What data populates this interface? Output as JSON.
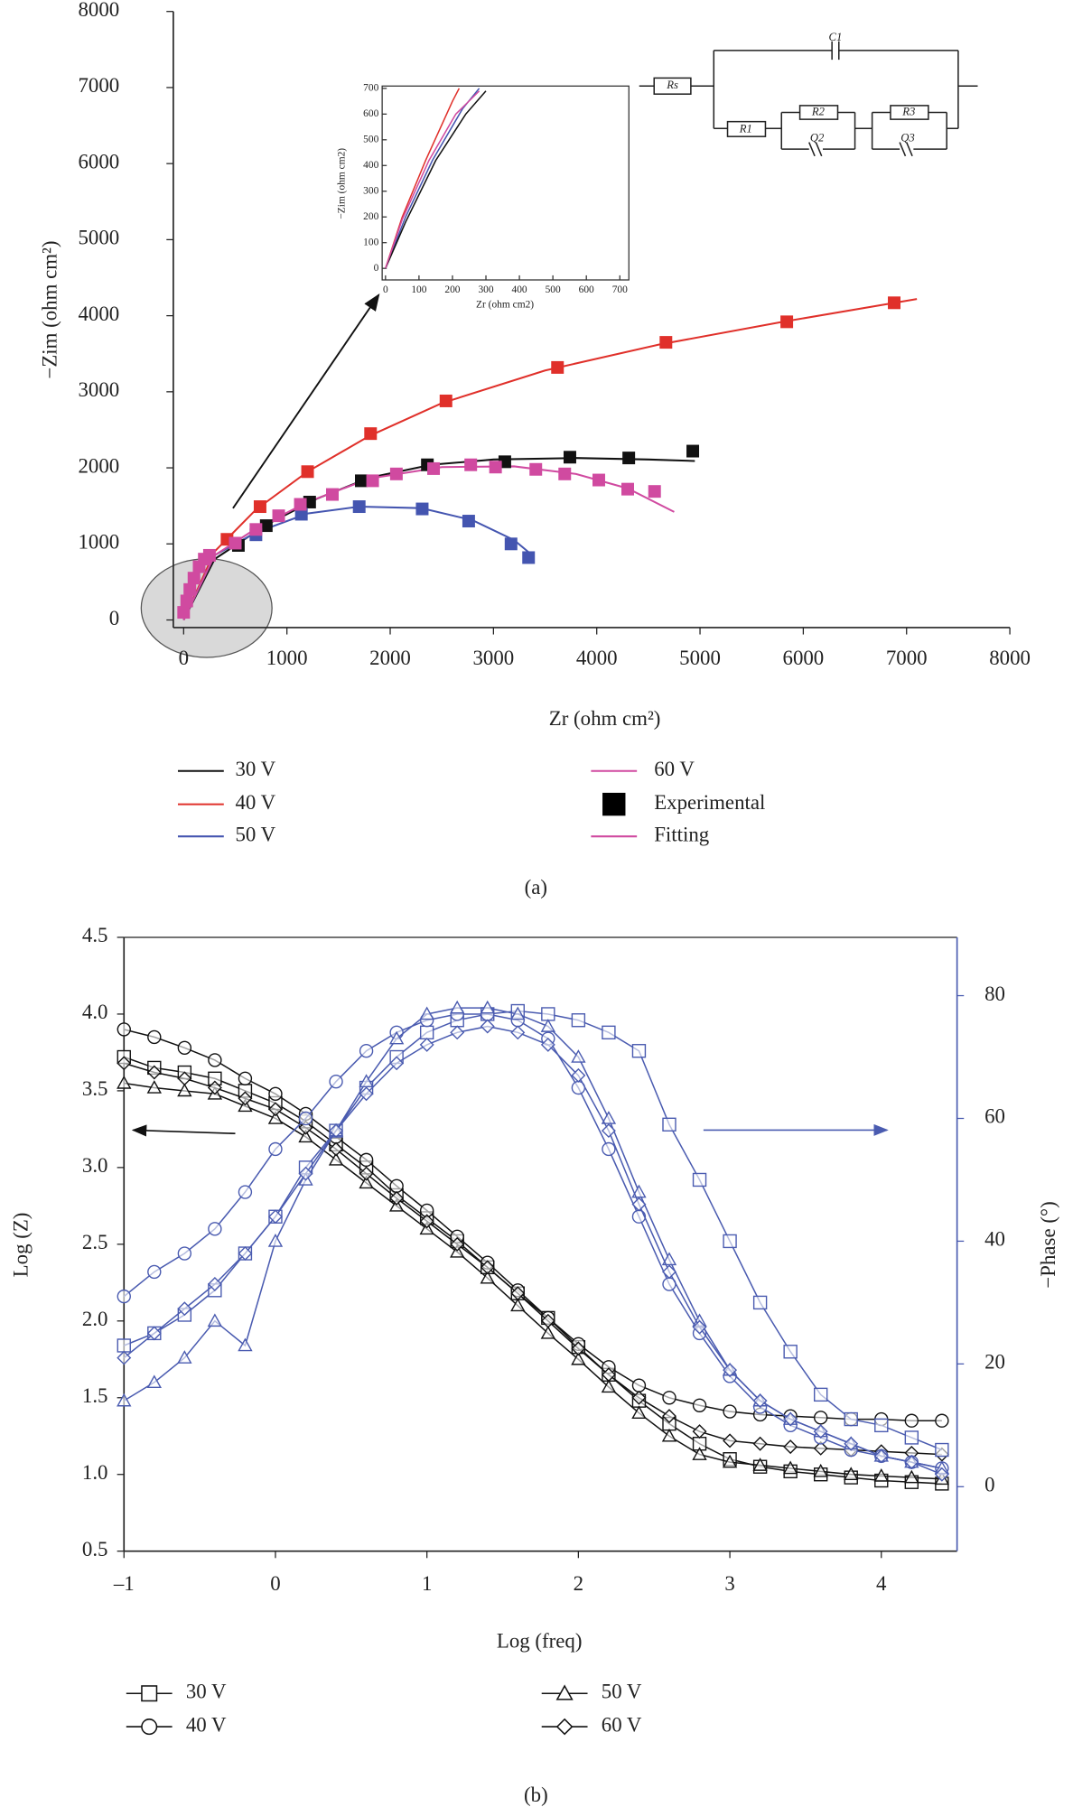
{
  "chart_data": [
    {
      "type": "scatter",
      "caption": "(a)",
      "x_label": "Zr (ohm cm²)",
      "y_label": "−Zim (ohm cm²)",
      "xlim": [
        -100,
        8000
      ],
      "ylim": [
        -100,
        8000
      ],
      "xticks": [
        0,
        1000,
        2000,
        3000,
        4000,
        5000,
        6000,
        7000,
        8000
      ],
      "yticks": [
        0,
        1000,
        2000,
        3000,
        4000,
        5000,
        6000,
        7000,
        8000
      ],
      "experimental_label": "Experimental",
      "fitting_label": "Fitting",
      "circuit_labels": [
        "Rs",
        "C1",
        "R1",
        "R2",
        "Q2",
        "R3",
        "Q3"
      ],
      "series": [
        {
          "name": "30 V",
          "color": "#111111",
          "x": [
            530,
            800,
            1220,
            1720,
            2360,
            3110,
            3740,
            4310,
            4930
          ],
          "values": [
            980,
            1240,
            1550,
            1830,
            2040,
            2080,
            2140,
            2130,
            2220
          ],
          "fit_x": [
            0,
            300,
            800,
            1300,
            1800,
            2400,
            3000,
            3800,
            4500,
            4950
          ],
          "fit_values": [
            0,
            800,
            1250,
            1600,
            1870,
            2040,
            2110,
            2130,
            2110,
            2090
          ]
        },
        {
          "name": "40 V",
          "color": "#e0302a",
          "x": [
            420,
            740,
            1200,
            1810,
            2540,
            3620,
            4670,
            5840,
            6880
          ],
          "values": [
            1060,
            1490,
            1950,
            2450,
            2880,
            3320,
            3650,
            3920,
            4170
          ],
          "fit_x": [
            0,
            300,
            700,
            1200,
            1800,
            2500,
            3500,
            4600,
            5800,
            7100
          ],
          "fit_values": [
            0,
            900,
            1450,
            1950,
            2420,
            2850,
            3280,
            3620,
            3920,
            4220
          ]
        },
        {
          "name": "50 V",
          "color": "#4455b0",
          "x": [
            700,
            1140,
            1700,
            2310,
            2760,
            3170,
            3340
          ],
          "values": [
            1120,
            1390,
            1490,
            1460,
            1300,
            1000,
            820
          ],
          "fit_x": [
            0,
            300,
            700,
            1200,
            1700,
            2300,
            2800,
            3200,
            3350
          ],
          "fit_values": [
            0,
            850,
            1150,
            1400,
            1490,
            1470,
            1310,
            1050,
            880
          ]
        },
        {
          "name": "60 V",
          "color": "#d04aa0",
          "x": [
            0,
            30,
            60,
            100,
            150,
            200,
            250,
            500,
            700,
            920,
            1130,
            1440,
            1830,
            2060,
            2420,
            2780,
            3020,
            3410,
            3690,
            4020,
            4300,
            4560
          ],
          "values": [
            100,
            250,
            400,
            550,
            700,
            800,
            850,
            1010,
            1190,
            1370,
            1520,
            1650,
            1830,
            1920,
            1990,
            2040,
            2010,
            1980,
            1920,
            1840,
            1720,
            1690
          ],
          "fit_x": [
            0,
            300,
            700,
            1200,
            1800,
            2500,
            3200,
            3800,
            4300,
            4750
          ],
          "fit_values": [
            0,
            850,
            1200,
            1550,
            1860,
            2010,
            2020,
            1920,
            1730,
            1420
          ]
        }
      ]
    },
    {
      "type": "line",
      "x_label": "Zr (ohm cm2)",
      "y_label": "−Zim (ohm cm2)",
      "xlim": [
        -10,
        727
      ],
      "ylim": [
        -45,
        709
      ],
      "xticks": [
        0,
        100,
        200,
        300,
        400,
        500,
        600,
        700
      ],
      "yticks": [
        0,
        100,
        200,
        300,
        400,
        500,
        600,
        700
      ],
      "series": [
        {
          "color": "#e0302a",
          "x": [
            0,
            50,
            120,
            200,
            220
          ],
          "values": [
            0,
            200,
            420,
            650,
            700
          ]
        },
        {
          "color": "#4455b0",
          "x": [
            0,
            60,
            140,
            230,
            280
          ],
          "values": [
            0,
            200,
            420,
            620,
            700
          ]
        },
        {
          "color": "#111111",
          "x": [
            0,
            60,
            150,
            240,
            300
          ],
          "values": [
            0,
            180,
            420,
            600,
            690
          ]
        },
        {
          "color": "#d04aa0",
          "x": [
            0,
            50,
            130,
            210,
            280
          ],
          "values": [
            0,
            190,
            420,
            600,
            690
          ]
        }
      ]
    },
    {
      "type": "line",
      "caption": "(b)",
      "x_label": "Log (freq)",
      "y_label": "Log (Z)",
      "y2_label": "−Phase (°)",
      "xlim": [
        -1,
        4.5
      ],
      "ylim": [
        0.5,
        4.5
      ],
      "y2lim": [
        -10.5,
        89.5
      ],
      "xticks": [
        {
          "value": -1,
          "label": "–1"
        },
        0,
        1,
        2,
        3,
        4
      ],
      "yticks": [
        0.5,
        {
          "value": 1,
          "label": "1.0"
        },
        1.5,
        {
          "value": 2,
          "label": "2.0"
        },
        2.5,
        {
          "value": 3,
          "label": "3.0"
        },
        3.5,
        {
          "value": 4,
          "label": "4.0"
        },
        4.5
      ],
      "y2ticks": [
        0,
        20,
        40,
        60,
        80
      ],
      "x": [
        -1,
        -0.8,
        -0.6,
        -0.4,
        -0.2,
        0,
        0.2,
        0.4,
        0.6,
        0.8,
        1,
        1.2,
        1.4,
        1.6,
        1.8,
        2,
        2.2,
        2.4,
        2.6,
        2.8,
        3,
        3.2,
        3.4,
        3.6,
        3.8,
        4,
        4.2,
        4.4
      ],
      "series": [
        {
          "name": "30 V",
          "marker": "square",
          "color": "#111111",
          "values": [
            3.72,
            3.65,
            3.62,
            3.58,
            3.5,
            3.42,
            3.3,
            3.15,
            3.0,
            2.82,
            2.67,
            2.52,
            2.35,
            2.18,
            2.02,
            1.83,
            1.65,
            1.48,
            1.33,
            1.2,
            1.1,
            1.05,
            1.02,
            1.0,
            0.98,
            0.96,
            0.95,
            0.94
          ]
        },
        {
          "name": "40 V",
          "marker": "circle",
          "color": "#111111",
          "values": [
            3.9,
            3.85,
            3.78,
            3.7,
            3.58,
            3.48,
            3.35,
            3.2,
            3.05,
            2.88,
            2.72,
            2.55,
            2.38,
            2.2,
            2.02,
            1.85,
            1.7,
            1.58,
            1.5,
            1.45,
            1.41,
            1.39,
            1.38,
            1.37,
            1.36,
            1.36,
            1.35,
            1.35
          ]
        },
        {
          "name": "50 V",
          "marker": "triangle",
          "color": "#111111",
          "values": [
            3.55,
            3.52,
            3.5,
            3.48,
            3.4,
            3.32,
            3.2,
            3.05,
            2.9,
            2.75,
            2.6,
            2.45,
            2.28,
            2.1,
            1.92,
            1.75,
            1.57,
            1.4,
            1.25,
            1.13,
            1.08,
            1.06,
            1.04,
            1.02,
            1.0,
            0.99,
            0.98,
            0.97
          ]
        },
        {
          "name": "60 V",
          "marker": "diamond",
          "color": "#111111",
          "values": [
            3.68,
            3.62,
            3.58,
            3.52,
            3.45,
            3.38,
            3.26,
            3.12,
            2.96,
            2.8,
            2.65,
            2.5,
            2.35,
            2.18,
            2.0,
            1.82,
            1.65,
            1.5,
            1.38,
            1.28,
            1.22,
            1.2,
            1.18,
            1.17,
            1.16,
            1.15,
            1.14,
            1.13
          ]
        },
        {
          "axis": "y2",
          "marker": "square",
          "color": "#4a5bb0",
          "values": [
            23,
            25,
            28,
            32,
            38,
            44,
            52,
            58,
            65,
            70,
            74,
            76,
            77,
            77.5,
            77,
            76,
            74,
            71,
            59,
            50,
            40,
            30,
            22,
            15,
            11,
            10,
            8,
            6
          ]
        },
        {
          "axis": "y2",
          "marker": "circle",
          "color": "#4a5bb0",
          "values": [
            31,
            35,
            38,
            42,
            48,
            55,
            60,
            66,
            71,
            74,
            76,
            77,
            77,
            76,
            73,
            65,
            55,
            44,
            33,
            25,
            18,
            13,
            10,
            8,
            6,
            5,
            4,
            3
          ]
        },
        {
          "axis": "y2",
          "marker": "triangle",
          "color": "#4a5bb0",
          "values": [
            14,
            17,
            21,
            27,
            23,
            40,
            50,
            58,
            66,
            73,
            77,
            78,
            78,
            77,
            75,
            70,
            60,
            48,
            37,
            27,
            19,
            14,
            11,
            9,
            7,
            5,
            4,
            3
          ]
        },
        {
          "axis": "y2",
          "marker": "diamond",
          "color": "#4a5bb0",
          "values": [
            21,
            25,
            29,
            33,
            38,
            44,
            51,
            58,
            64,
            69,
            72,
            74,
            75,
            74,
            72,
            67,
            58,
            46,
            35,
            26,
            19,
            14,
            11,
            9,
            7,
            5,
            4,
            2
          ]
        }
      ]
    }
  ]
}
